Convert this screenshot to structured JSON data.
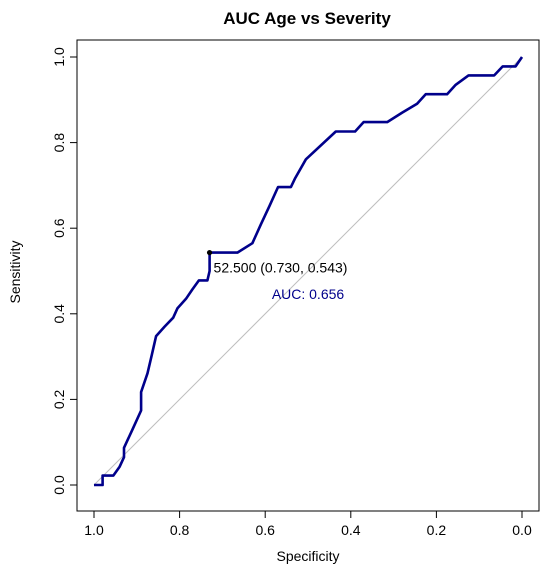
{
  "chart_data": {
    "type": "line",
    "title": "AUC Age vs Severity",
    "xlabel": "Specificity",
    "ylabel": "Sensitivity",
    "xlim": [
      1.0,
      0.0
    ],
    "ylim": [
      0.0,
      1.0
    ],
    "x_reversed": true,
    "xticks": [
      1.0,
      0.8,
      0.6,
      0.4,
      0.2,
      0.0
    ],
    "xtick_labels": [
      "1.0",
      "0.8",
      "0.6",
      "0.4",
      "0.2",
      "0.0"
    ],
    "yticks": [
      0.0,
      0.2,
      0.4,
      0.6,
      0.8,
      1.0
    ],
    "ytick_labels": [
      "0.0",
      "0.2",
      "0.4",
      "0.6",
      "0.8",
      "1.0"
    ],
    "grid": false,
    "series": [
      {
        "color": "#00008b",
        "points": [
          [
            1.0,
            0.0
          ],
          [
            0.98,
            0.0
          ],
          [
            0.98,
            0.022
          ],
          [
            0.955,
            0.022
          ],
          [
            0.94,
            0.043
          ],
          [
            0.93,
            0.065
          ],
          [
            0.93,
            0.087
          ],
          [
            0.91,
            0.13
          ],
          [
            0.89,
            0.174
          ],
          [
            0.89,
            0.217
          ],
          [
            0.875,
            0.261
          ],
          [
            0.865,
            0.304
          ],
          [
            0.855,
            0.348
          ],
          [
            0.835,
            0.37
          ],
          [
            0.815,
            0.391
          ],
          [
            0.805,
            0.413
          ],
          [
            0.785,
            0.435
          ],
          [
            0.77,
            0.457
          ],
          [
            0.755,
            0.478
          ],
          [
            0.735,
            0.478
          ],
          [
            0.73,
            0.5
          ],
          [
            0.73,
            0.543
          ],
          [
            0.705,
            0.543
          ],
          [
            0.665,
            0.543
          ],
          [
            0.63,
            0.565
          ],
          [
            0.61,
            0.609
          ],
          [
            0.59,
            0.652
          ],
          [
            0.57,
            0.696
          ],
          [
            0.54,
            0.696
          ],
          [
            0.53,
            0.717
          ],
          [
            0.505,
            0.761
          ],
          [
            0.435,
            0.826
          ],
          [
            0.39,
            0.826
          ],
          [
            0.37,
            0.848
          ],
          [
            0.315,
            0.848
          ],
          [
            0.28,
            0.87
          ],
          [
            0.245,
            0.891
          ],
          [
            0.225,
            0.913
          ],
          [
            0.175,
            0.913
          ],
          [
            0.155,
            0.935
          ],
          [
            0.125,
            0.957
          ],
          [
            0.065,
            0.957
          ],
          [
            0.045,
            0.978
          ],
          [
            0.015,
            0.978
          ],
          [
            0.0,
            1.0
          ]
        ]
      }
    ],
    "reference_line": {
      "from": [
        1.0,
        0.0
      ],
      "to": [
        0.0,
        1.0
      ],
      "color": "#bebebe"
    },
    "threshold_point": {
      "x": 0.73,
      "y": 0.543,
      "label": "52.500 (0.730, 0.543)"
    },
    "auc_label": {
      "text": "AUC: 0.656",
      "x": 0.5,
      "y": 0.446,
      "color": "#00008b"
    }
  }
}
